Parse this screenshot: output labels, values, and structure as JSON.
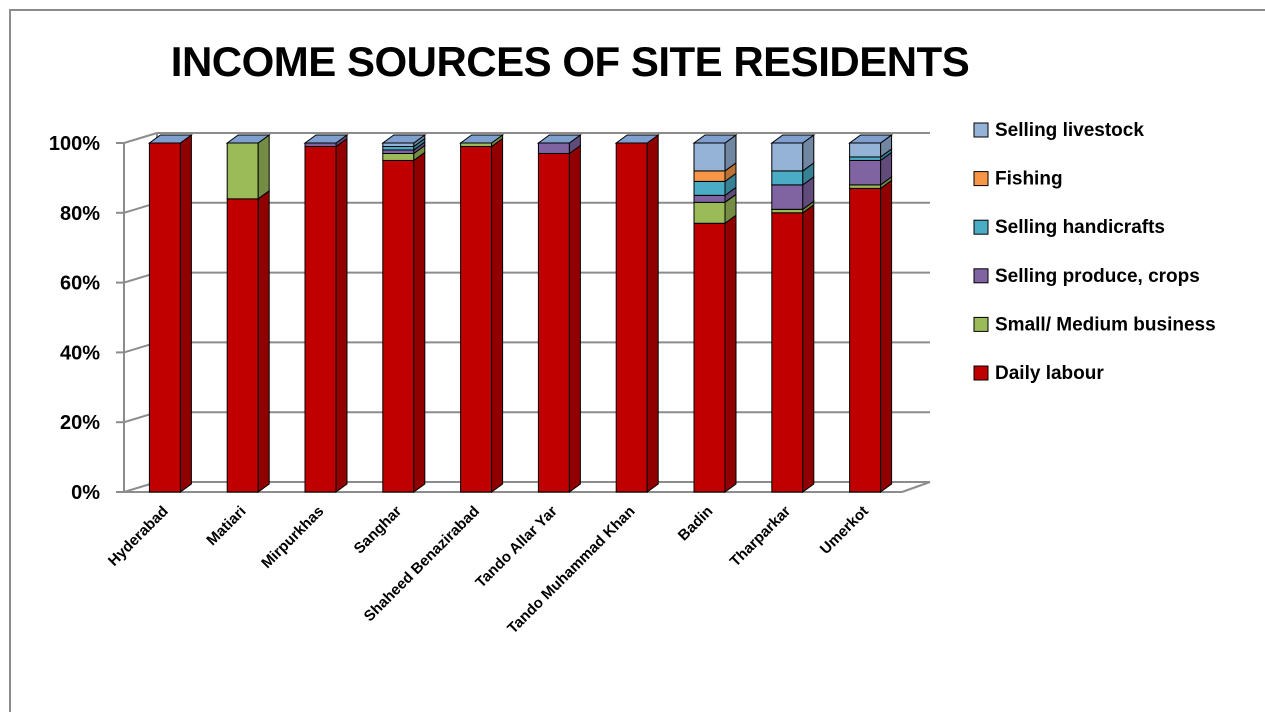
{
  "chart_data": {
    "type": "bar",
    "stacked": true,
    "percent_stacked": true,
    "three_d": true,
    "title": "INCOME SOURCES OF SITE RESIDENTS",
    "categories": [
      "Hyderabad",
      "Matiari",
      "Mirpurkhas",
      "Sanghar",
      "Shaheed Benazirabad",
      "Tando Allar Yar",
      "Tando Muhammad Khan",
      "Badin",
      "Tharparkar",
      "Umerkot"
    ],
    "y_ticks": [
      "0%",
      "20%",
      "40%",
      "60%",
      "80%",
      "100%"
    ],
    "ylim": [
      0,
      100
    ],
    "grid": true,
    "legend_position": "right",
    "series": [
      {
        "name": "Daily labour",
        "color": "#c00000",
        "values": [
          100,
          84,
          99,
          95,
          99,
          97,
          100,
          77,
          80,
          87
        ]
      },
      {
        "name": "Small/ Medium business",
        "color": "#9bbb59",
        "values": [
          0,
          16,
          0,
          2,
          1,
          0,
          0,
          6,
          1,
          1
        ]
      },
      {
        "name": "Selling produce, crops",
        "color": "#8064a2",
        "values": [
          0,
          0,
          1,
          1,
          0,
          3,
          0,
          2,
          7,
          7
        ]
      },
      {
        "name": "Selling handicrafts",
        "color": "#4bacc6",
        "values": [
          0,
          0,
          0,
          1,
          0,
          0,
          0,
          4,
          4,
          1
        ]
      },
      {
        "name": "Fishing",
        "color": "#f79646",
        "values": [
          0,
          0,
          0,
          0,
          0,
          0,
          0,
          3,
          0,
          0
        ]
      },
      {
        "name": "Selling livestock",
        "color": "#95b3d7",
        "values": [
          0,
          0,
          0,
          1,
          0,
          0,
          0,
          8,
          8,
          4
        ]
      }
    ]
  }
}
